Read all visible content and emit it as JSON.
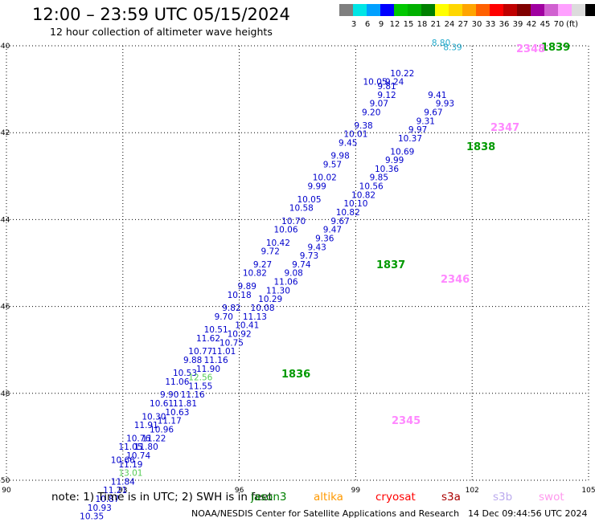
{
  "title": "12:00 – 23:59 UTC 05/15/2024",
  "subtitle": "12 hour collection of altimeter wave heights",
  "legend": {
    "colors": [
      "#7f7f7f",
      "#00e5e5",
      "#00a0ff",
      "#0000ff",
      "#00c800",
      "#00b000",
      "#008000",
      "#ffff00",
      "#ffd700",
      "#ffa500",
      "#ff6000",
      "#ff0000",
      "#c00000",
      "#800000",
      "#a000a0",
      "#d060d0",
      "#ffa0ff",
      "#dcdcdc",
      "#000000"
    ],
    "labels": [
      "3",
      "6",
      "9",
      "12",
      "15",
      "18",
      "21",
      "24",
      "27",
      "30",
      "33",
      "36",
      "39",
      "42",
      "45",
      "70"
    ],
    "unit": "(ft)"
  },
  "chart_data": {
    "type": "scatter",
    "xlim": [
      90,
      105
    ],
    "ylim": [
      -50,
      -40
    ],
    "xticks": [
      "90",
      "93",
      "96",
      "99",
      "102",
      "105"
    ],
    "yticks": [
      "-40",
      "-42",
      "-44",
      "-46",
      "-48",
      "-50"
    ],
    "grid": true,
    "series": [
      {
        "color": "#0000cc",
        "points": [
          [
            99.5,
            -40.9,
            "10.05"
          ],
          [
            99.8,
            -41.0,
            "9.81"
          ],
          [
            101.1,
            -41.2,
            "9.41"
          ],
          [
            101.3,
            -41.4,
            "9.93"
          ],
          [
            101.0,
            -41.6,
            "9.67"
          ],
          [
            100.8,
            -41.8,
            "9.31"
          ],
          [
            100.6,
            -42.0,
            "9.97"
          ],
          [
            100.4,
            -42.2,
            "10.37"
          ],
          [
            100.2,
            -42.5,
            "10.69"
          ],
          [
            100.0,
            -42.7,
            "9.99"
          ],
          [
            99.8,
            -42.9,
            "10.36"
          ],
          [
            99.6,
            -43.1,
            "9.85"
          ],
          [
            99.4,
            -43.3,
            "10.56"
          ],
          [
            99.2,
            -43.5,
            "10.82"
          ],
          [
            99.0,
            -43.7,
            "10.10"
          ],
          [
            98.8,
            -43.9,
            "10.82"
          ],
          [
            98.6,
            -44.1,
            "9.67"
          ],
          [
            98.4,
            -44.3,
            "9.47"
          ],
          [
            98.2,
            -44.5,
            "9.36"
          ],
          [
            98.0,
            -44.7,
            "9.43"
          ],
          [
            97.8,
            -44.9,
            "9.73"
          ],
          [
            97.6,
            -45.1,
            "9.74"
          ],
          [
            97.4,
            -45.3,
            "9.08"
          ],
          [
            97.2,
            -45.5,
            "11.06"
          ],
          [
            97.0,
            -45.7,
            "11.30"
          ],
          [
            96.8,
            -45.9,
            "10.29"
          ],
          [
            96.6,
            -46.1,
            "10.08"
          ],
          [
            96.4,
            -46.3,
            "11.13"
          ],
          [
            96.2,
            -46.5,
            "10.41"
          ],
          [
            96.0,
            -46.7,
            "10.92"
          ],
          [
            95.8,
            -46.9,
            "10.75"
          ],
          [
            95.6,
            -47.1,
            "11.01"
          ],
          [
            95.4,
            -47.3,
            "11.16"
          ],
          [
            95.2,
            -47.5,
            "11.90"
          ],
          [
            95.0,
            -47.9,
            "11.55"
          ],
          [
            94.8,
            -48.1,
            "11.16"
          ],
          [
            94.6,
            -48.3,
            "11.81"
          ],
          [
            94.4,
            -48.5,
            "10.63"
          ],
          [
            94.2,
            -48.7,
            "11.17"
          ],
          [
            94.0,
            -48.9,
            "10.96"
          ],
          [
            93.8,
            -49.1,
            "11.22"
          ],
          [
            93.6,
            -49.3,
            "11.80"
          ],
          [
            93.4,
            -49.5,
            "10.74"
          ],
          [
            93.2,
            -49.7,
            "11.19"
          ],
          [
            93.0,
            -50.1,
            "11.84"
          ],
          [
            92.8,
            -50.3,
            "11.21"
          ],
          [
            92.6,
            -50.5,
            "10.87"
          ],
          [
            92.4,
            -50.7,
            "10.93"
          ],
          [
            92.2,
            -50.9,
            "10.35"
          ],
          [
            100.2,
            -40.7,
            "10.22"
          ],
          [
            100.0,
            -40.9,
            "9.24"
          ],
          [
            99.8,
            -41.2,
            "9.12"
          ],
          [
            99.6,
            -41.4,
            "9.07"
          ],
          [
            99.4,
            -41.6,
            "9.20"
          ],
          [
            99.2,
            -41.9,
            "9.38"
          ],
          [
            99.0,
            -42.1,
            "10.01"
          ],
          [
            98.8,
            -42.3,
            "9.45"
          ],
          [
            98.6,
            -42.6,
            "9.98"
          ],
          [
            98.4,
            -42.8,
            "9.57"
          ],
          [
            98.2,
            -43.1,
            "10.02"
          ],
          [
            98.0,
            -43.3,
            "9.99"
          ],
          [
            97.8,
            -43.6,
            "10.05"
          ],
          [
            97.6,
            -43.8,
            "10.58"
          ],
          [
            97.4,
            -44.1,
            "10.70"
          ],
          [
            97.2,
            -44.3,
            "10.06"
          ],
          [
            97.0,
            -44.6,
            "10.42"
          ],
          [
            96.8,
            -44.8,
            "9.72"
          ],
          [
            96.6,
            -45.1,
            "9.27"
          ],
          [
            96.4,
            -45.3,
            "10.82"
          ],
          [
            96.2,
            -45.6,
            "9.89"
          ],
          [
            96.0,
            -45.8,
            "10.18"
          ],
          [
            95.8,
            -46.1,
            "9.82"
          ],
          [
            95.6,
            -46.3,
            "9.70"
          ],
          [
            95.4,
            -46.6,
            "10.51"
          ],
          [
            95.2,
            -46.8,
            "11.62"
          ],
          [
            95.0,
            -47.1,
            "10.77"
          ],
          [
            94.8,
            -47.3,
            "9.88"
          ],
          [
            94.6,
            -47.6,
            "10.53"
          ],
          [
            94.4,
            -47.8,
            "11.06"
          ],
          [
            94.2,
            -48.1,
            "9.90"
          ],
          [
            94.0,
            -48.3,
            "10.61"
          ],
          [
            93.8,
            -48.6,
            "10.30"
          ],
          [
            93.6,
            -48.8,
            "11.91"
          ],
          [
            93.4,
            -49.1,
            "10.76"
          ],
          [
            93.2,
            -49.3,
            "11.05"
          ],
          [
            93.0,
            -49.6,
            "10.66"
          ]
        ]
      },
      {
        "color": "#55cc55",
        "points": [
          [
            95.0,
            -47.7,
            "12.56"
          ],
          [
            93.2,
            -49.9,
            "13.01"
          ]
        ]
      },
      {
        "color": "#22aacc",
        "points": [
          [
            101.2,
            -40.0,
            "8.80"
          ],
          [
            101.5,
            -40.1,
            "8.39"
          ]
        ]
      }
    ]
  },
  "overpass_times": [
    {
      "label": "1839",
      "color": "#009900"
    },
    {
      "label": "1838",
      "color": "#009900"
    },
    {
      "label": "1837",
      "color": "#009900"
    },
    {
      "label": "1836",
      "color": "#009900"
    },
    {
      "label": "2348",
      "color": "#ff88ff"
    },
    {
      "label": "2347",
      "color": "#ff88ff"
    },
    {
      "label": "2346",
      "color": "#ff88ff"
    },
    {
      "label": "2345",
      "color": "#ff88ff"
    }
  ],
  "note": "note:  1) Time is in UTC; 2) SWH is in feet",
  "satellites": [
    {
      "name": "jason3",
      "color": "#008000"
    },
    {
      "name": "altika",
      "color": "#ff9900"
    },
    {
      "name": "cryosat",
      "color": "#ff0000"
    },
    {
      "name": "s3a",
      "color": "#aa0000"
    },
    {
      "name": "s3b",
      "color": "#bbaaee"
    },
    {
      "name": "swot",
      "color": "#ff99ee"
    }
  ],
  "credit": "NOAA/NESDIS Center for Satellite Applications and Research",
  "stamp": "14 Dec 09:44:56 UTC 2024"
}
